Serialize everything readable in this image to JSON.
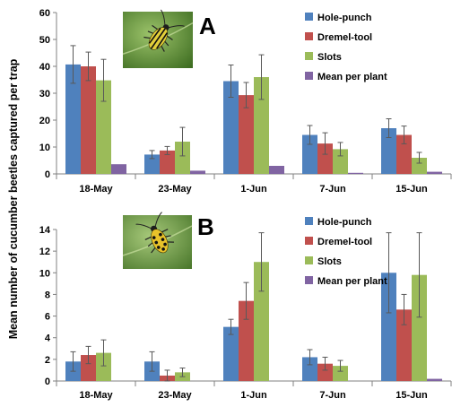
{
  "figure": {
    "ylabel": "Mean number of cucumber beetles captured per trap"
  },
  "colors": {
    "Hole-punch": "#4f81bd",
    "Dremel-tool": "#c0504d",
    "Slots": "#9bbb59",
    "Mean per plant": "#8064a2",
    "error_bar": "#595959",
    "axis": "#808080"
  },
  "chart_data": [
    {
      "type": "bar",
      "panel_label": "A",
      "photo": "striped-cucumber-beetle-photo",
      "categories": [
        "18-May",
        "23-May",
        "1-Jun",
        "7-Jun",
        "15-Jun"
      ],
      "ylim": [
        0,
        60
      ],
      "yticks": [
        0,
        10,
        20,
        30,
        40,
        50,
        60
      ],
      "grid": false,
      "legend_position": "top-right",
      "series": [
        {
          "name": "Hole-punch",
          "values": [
            40.7,
            7.2,
            34.5,
            14.5,
            17.0
          ],
          "errors": [
            7.0,
            1.5,
            6.0,
            3.5,
            3.5
          ]
        },
        {
          "name": "Dremel-tool",
          "values": [
            40.0,
            8.7,
            29.3,
            11.3,
            14.5
          ],
          "errors": [
            5.3,
            1.5,
            4.7,
            4.0,
            3.3
          ]
        },
        {
          "name": "Slots",
          "values": [
            34.8,
            12.0,
            36.0,
            9.2,
            6.0
          ],
          "errors": [
            7.8,
            5.3,
            8.3,
            2.5,
            2.0
          ]
        },
        {
          "name": "Mean per plant",
          "values": [
            3.6,
            1.2,
            3.0,
            0.4,
            0.8
          ],
          "errors": [
            0,
            0,
            0,
            0,
            0
          ]
        }
      ]
    },
    {
      "type": "bar",
      "panel_label": "B",
      "photo": "spotted-cucumber-beetle-photo",
      "categories": [
        "18-May",
        "23-May",
        "1-Jun",
        "7-Jun",
        "15-Jun"
      ],
      "ylim": [
        0,
        14
      ],
      "yticks": [
        0,
        2,
        4,
        6,
        8,
        10,
        12,
        14
      ],
      "grid": false,
      "legend_position": "top-right",
      "series": [
        {
          "name": "Hole-punch",
          "values": [
            1.8,
            1.8,
            5.0,
            2.2,
            10.0
          ],
          "errors": [
            0.9,
            0.9,
            0.7,
            0.7,
            3.7
          ]
        },
        {
          "name": "Dremel-tool",
          "values": [
            2.4,
            0.5,
            7.4,
            1.6,
            6.6
          ],
          "errors": [
            0.8,
            0.5,
            1.7,
            0.6,
            1.4
          ]
        },
        {
          "name": "Slots",
          "values": [
            2.6,
            0.8,
            11.0,
            1.4,
            9.8
          ],
          "errors": [
            1.2,
            0.4,
            2.7,
            0.5,
            3.9
          ]
        },
        {
          "name": "Mean per plant",
          "values": [
            0.0,
            0.0,
            0.0,
            0.0,
            0.2
          ],
          "errors": [
            0,
            0,
            0,
            0,
            0
          ]
        }
      ]
    }
  ]
}
